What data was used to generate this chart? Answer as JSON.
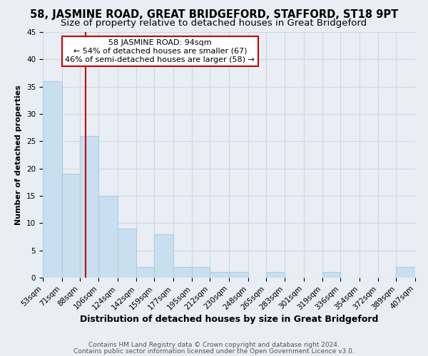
{
  "title": "58, JASMINE ROAD, GREAT BRIDGEFORD, STAFFORD, ST18 9PT",
  "subtitle": "Size of property relative to detached houses in Great Bridgeford",
  "xlabel": "Distribution of detached houses by size in Great Bridgeford",
  "ylabel": "Number of detached properties",
  "all_edges": [
    53,
    71,
    88,
    106,
    124,
    142,
    159,
    177,
    195,
    212,
    230,
    248,
    265,
    283,
    301,
    319,
    336,
    354,
    372,
    389,
    407
  ],
  "all_values": [
    36,
    19,
    26,
    15,
    9,
    2,
    8,
    2,
    2,
    1,
    1,
    0,
    1,
    0,
    0,
    1,
    0,
    0,
    0,
    2
  ],
  "bar_color": "#c8dff0",
  "bar_edge_color": "#b0cce0",
  "reference_line_x": 94,
  "reference_line_color": "#cc0000",
  "ylim": [
    0,
    45
  ],
  "yticks": [
    0,
    5,
    10,
    15,
    20,
    25,
    30,
    35,
    40,
    45
  ],
  "annotation_title": "58 JASMINE ROAD: 94sqm",
  "annotation_line1": "← 54% of detached houses are smaller (67)",
  "annotation_line2": "46% of semi-detached houses are larger (58) →",
  "annotation_box_color": "#ffffff",
  "annotation_box_edge_color": "#cc0000",
  "footer1": "Contains HM Land Registry data © Crown copyright and database right 2024.",
  "footer2": "Contains public sector information licensed under the Open Government Licence v3.0.",
  "background_color": "#e8eef4",
  "plot_background_color": "#e8eef4",
  "grid_color": "#d0d8e0",
  "title_fontsize": 10.5,
  "subtitle_fontsize": 9.5,
  "xlabel_fontsize": 9,
  "ylabel_fontsize": 8,
  "tick_fontsize": 7.5,
  "annotation_fontsize": 8,
  "footer_fontsize": 6.5
}
